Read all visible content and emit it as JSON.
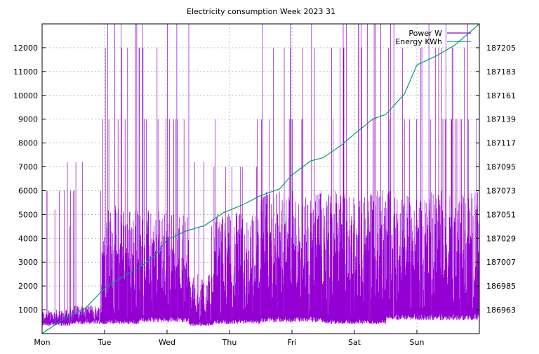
{
  "chart_data": {
    "type": "line",
    "title": "Electricity consumption Week 2023 31",
    "x_categories": [
      "Mon",
      "Tue",
      "Wed",
      "Thu",
      "Fri",
      "Sat",
      "Sun"
    ],
    "left_axis": {
      "ticks": [
        "1000",
        "2000",
        "3000",
        "4000",
        "5000",
        "6000",
        "7000",
        "8000",
        "9000",
        "10000",
        "11000",
        "12000"
      ],
      "ylim": [
        0,
        13000
      ]
    },
    "right_axis": {
      "ticks": [
        "186963",
        "186985",
        "187007",
        "187029",
        "187051",
        "187073",
        "187095",
        "187117",
        "187139",
        "187161",
        "187183",
        "187205"
      ],
      "ylim": [
        186933,
        187220
      ]
    },
    "grid": true,
    "legend": "top-right",
    "series": [
      {
        "name": "Power W",
        "axis": "left",
        "color": "#9400d3",
        "blocks": [
          {
            "day": 0.0,
            "base": [
              400,
              1000
            ],
            "high": 3000,
            "spikes": [
              7200,
              6000,
              5200,
              4500
            ]
          },
          {
            "day": 0.45,
            "base": [
              500,
              1200
            ],
            "high": 3000,
            "spikes": [
              6000,
              7200,
              6000
            ]
          },
          {
            "day": 0.95,
            "base": [
              500,
              5400
            ],
            "high": 5400,
            "spikes": [
              13000,
              12000,
              9000
            ]
          },
          {
            "day": 1.55,
            "base": [
              600,
              5200
            ],
            "high": 6000,
            "spikes": [
              13000,
              9000,
              12000,
              9000
            ]
          },
          {
            "day": 2.35,
            "base": [
              400,
              2500
            ],
            "high": 2500,
            "spikes": [
              4500,
              7200
            ]
          },
          {
            "day": 2.75,
            "base": [
              500,
              5100
            ],
            "high": 5100,
            "spikes": [
              9000,
              7000
            ]
          },
          {
            "day": 3.5,
            "base": [
              600,
              6000
            ],
            "high": 6000,
            "spikes": [
              13000,
              12000,
              9000
            ]
          },
          {
            "day": 4.5,
            "base": [
              500,
              6000
            ],
            "high": 6000,
            "spikes": [
              13000,
              12000,
              9000
            ]
          },
          {
            "day": 5.5,
            "base": [
              700,
              6000
            ],
            "high": 6000,
            "spikes": [
              13000,
              9000,
              12000
            ]
          }
        ]
      },
      {
        "name": "Energy KWh",
        "axis": "right",
        "color": "#009e73",
        "points": [
          [
            0,
            186933
          ],
          [
            0.3,
            186945
          ],
          [
            0.7,
            186957
          ],
          [
            1.0,
            186975
          ],
          [
            1.3,
            186986
          ],
          [
            1.6,
            186996
          ],
          [
            1.8,
            187005
          ],
          [
            2.0,
            187020
          ],
          [
            2.3,
            187028
          ],
          [
            2.6,
            187033
          ],
          [
            2.9,
            187045
          ],
          [
            3.2,
            187052
          ],
          [
            3.5,
            187061
          ],
          [
            3.8,
            187067
          ],
          [
            4.0,
            187080
          ],
          [
            4.3,
            187093
          ],
          [
            4.5,
            187096
          ],
          [
            4.8,
            187108
          ],
          [
            5.0,
            187118
          ],
          [
            5.3,
            187132
          ],
          [
            5.5,
            187136
          ],
          [
            5.8,
            187155
          ],
          [
            6.0,
            187182
          ],
          [
            6.3,
            187190
          ],
          [
            6.6,
            187200
          ],
          [
            6.8,
            187210
          ],
          [
            7.0,
            187222
          ]
        ]
      }
    ]
  }
}
